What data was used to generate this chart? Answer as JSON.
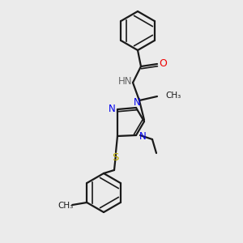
{
  "bg_color": "#ebebeb",
  "bond_color": "#1a1a1a",
  "N_color": "#0000ee",
  "O_color": "#ee0000",
  "S_color": "#bbaa00",
  "H_color": "#666666",
  "figsize": [
    3.0,
    3.0
  ],
  "dpi": 100,
  "xlim": [
    0,
    300
  ],
  "ylim": [
    0,
    300
  ]
}
